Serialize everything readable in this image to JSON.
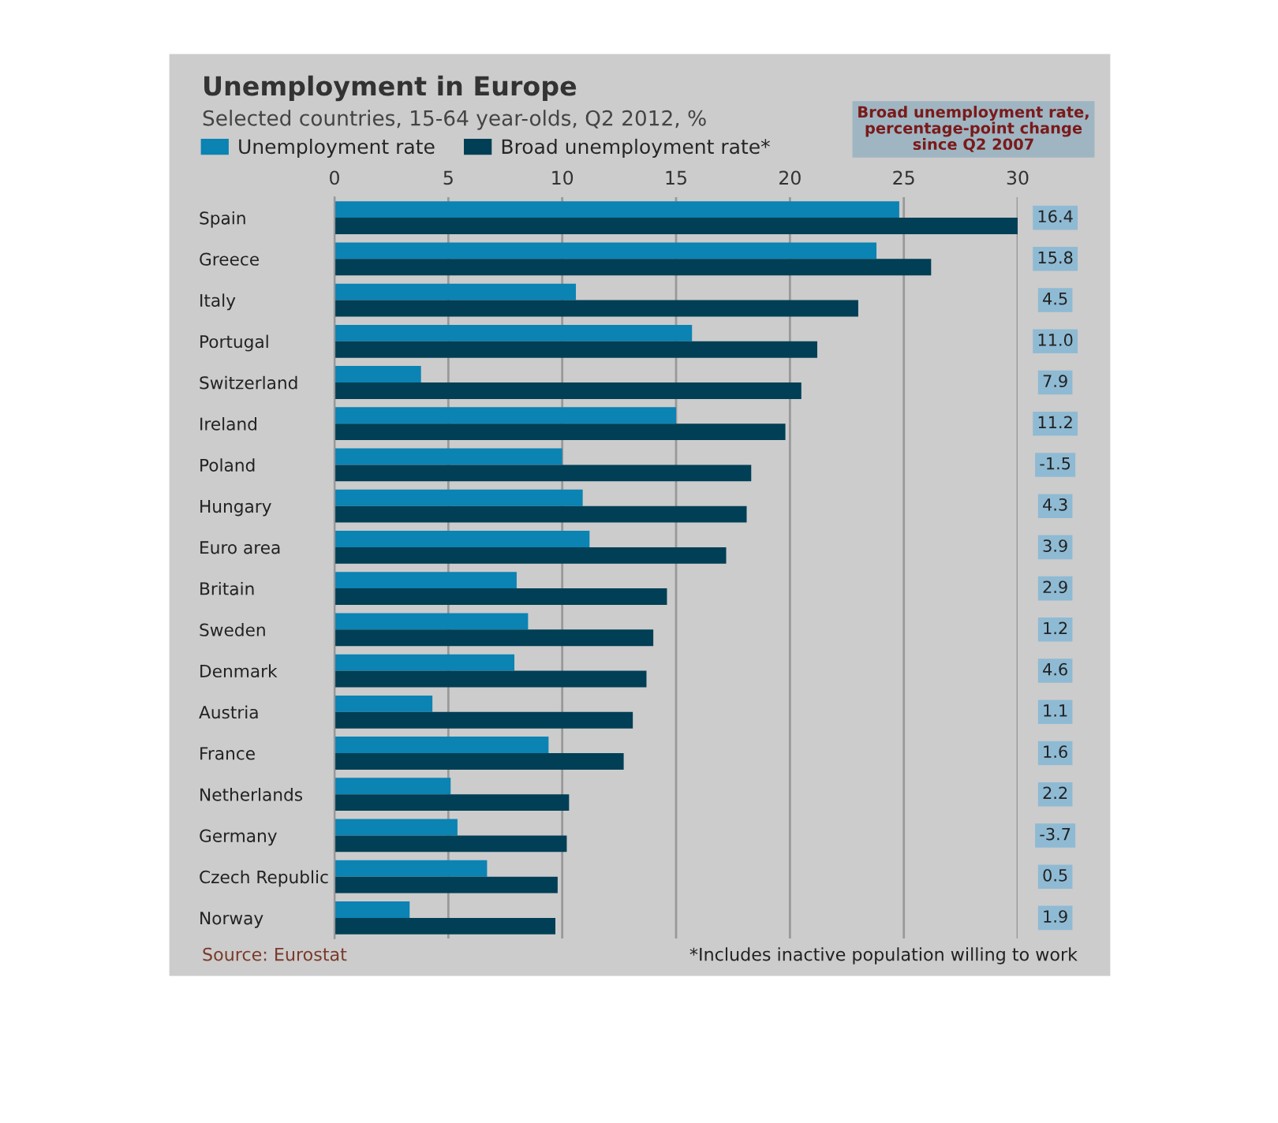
{
  "chart_data": {
    "type": "bar",
    "orientation": "horizontal",
    "title": "Unemployment in Europe",
    "subtitle": "Selected countries, 15-64 year-olds, Q2 2012, %",
    "categories": [
      "Spain",
      "Greece",
      "Italy",
      "Portugal",
      "Switzerland",
      "Ireland",
      "Poland",
      "Hungary",
      "Euro area",
      "Britain",
      "Sweden",
      "Denmark",
      "Austria",
      "France",
      "Netherlands",
      "Germany",
      "Czech Republic",
      "Norway"
    ],
    "series": [
      {
        "name": "Unemployment rate",
        "color": "#0b83b3",
        "values": [
          24.8,
          23.8,
          10.6,
          15.7,
          3.8,
          15.0,
          10.0,
          10.9,
          11.2,
          8.0,
          8.5,
          7.9,
          4.3,
          9.4,
          5.1,
          5.4,
          6.7,
          3.3
        ]
      },
      {
        "name": "Broad unemployment rate*",
        "color": "#003f55",
        "values": [
          30.0,
          26.2,
          23.0,
          21.2,
          20.5,
          19.8,
          18.3,
          18.1,
          17.2,
          14.6,
          14.0,
          13.7,
          13.1,
          12.7,
          10.3,
          10.2,
          9.8,
          9.7
        ]
      }
    ],
    "xlim": [
      0,
      30
    ],
    "xticks": [
      0,
      5,
      10,
      15,
      20,
      25,
      30
    ],
    "grid": "x",
    "legend": "top left",
    "annotations": [
      "Broad unemployment rate,\npercentage-point change\nsince Q2 2007",
      "Source: Eurostat",
      "*Includes inactive population willing to work",
      "16.4",
      "15.8",
      "4.5",
      "11.0",
      "7.9",
      "11.2",
      "-1.5",
      "4.3",
      "3.9",
      "2.9",
      "1.2",
      "4.6",
      "1.1",
      "1.6",
      "2.2",
      "-3.7",
      "0.5",
      "1.9"
    ]
  }
}
